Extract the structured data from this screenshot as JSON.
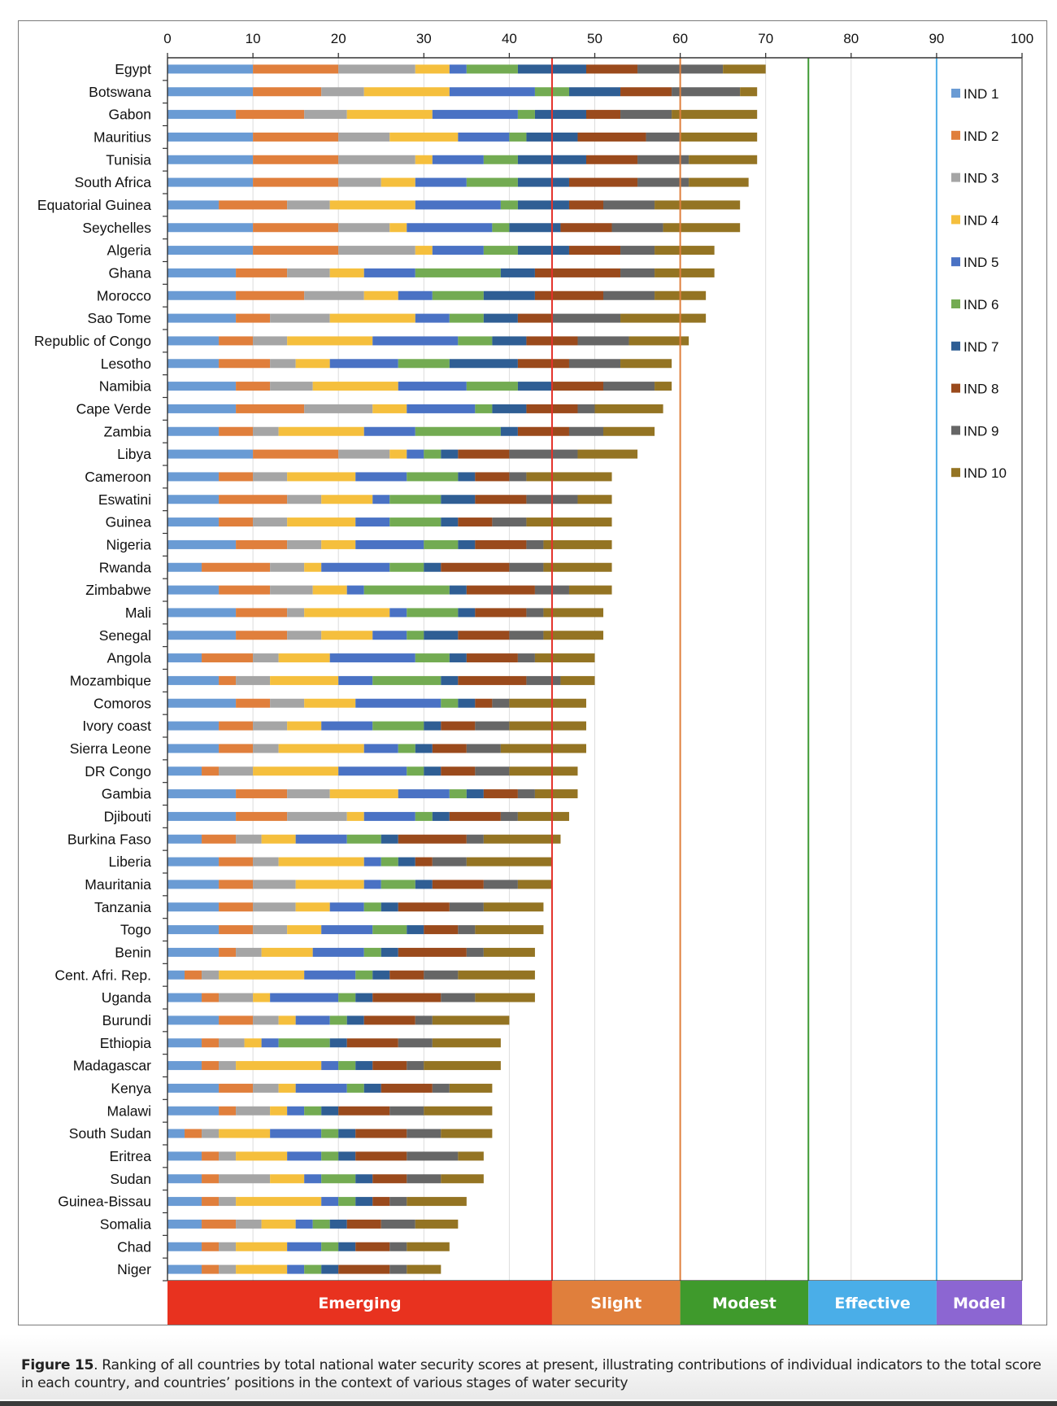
{
  "chart_data": {
    "type": "bar",
    "orientation": "horizontal",
    "stacked": true,
    "title": "",
    "xlabel": "",
    "ylabel": "",
    "xlim": [
      0,
      100
    ],
    "x_ticks": [
      0,
      10,
      20,
      30,
      40,
      50,
      60,
      70,
      80,
      90,
      100
    ],
    "x_axis_position": "top",
    "grid": "vertical",
    "legend_position": "right",
    "series_names": [
      "IND 1",
      "IND 2",
      "IND 3",
      "IND 4",
      "IND 5",
      "IND 6",
      "IND 7",
      "IND 8",
      "IND 9",
      "IND 10"
    ],
    "series_colors": [
      "#6a9bd4",
      "#e07f3c",
      "#a5a5a5",
      "#f5bf3d",
      "#4a72c4",
      "#73ab52",
      "#2f5e94",
      "#9a4a1c",
      "#666666",
      "#947423"
    ],
    "categories": [
      "Egypt",
      "Botswana",
      "Gabon",
      "Mauritius",
      "Tunisia",
      "South Africa",
      "Equatorial Guinea",
      "Seychelles",
      "Algeria",
      "Ghana",
      "Morocco",
      "Sao Tome",
      "Republic of Congo",
      "Lesotho",
      "Namibia",
      "Cape Verde",
      "Zambia",
      "Libya",
      "Cameroon",
      "Eswatini",
      "Guinea",
      "Nigeria",
      "Rwanda",
      "Zimbabwe",
      "Mali",
      "Senegal",
      "Angola",
      "Mozambique",
      "Comoros",
      "Ivory coast",
      "Sierra Leone",
      "DR Congo",
      "Gambia",
      "Djibouti",
      "Burkina Faso",
      "Liberia",
      "Mauritania",
      "Tanzania",
      "Togo",
      "Benin",
      "Cent. Afri. Rep.",
      "Uganda",
      "Burundi",
      "Ethiopia",
      "Madagascar",
      "Kenya",
      "Malawi",
      "South Sudan",
      "Eritrea",
      "Sudan",
      "Guinea-Bissau",
      "Somalia",
      "Chad",
      "Niger"
    ],
    "values": [
      [
        10,
        10,
        9,
        4,
        2,
        6,
        8,
        6,
        10,
        5
      ],
      [
        10,
        8,
        5,
        10,
        10,
        4,
        6,
        6,
        8,
        2
      ],
      [
        8,
        8,
        5,
        10,
        10,
        2,
        6,
        4,
        6,
        10
      ],
      [
        10,
        10,
        6,
        8,
        6,
        2,
        6,
        8,
        4,
        9
      ],
      [
        10,
        10,
        9,
        2,
        6,
        4,
        8,
        6,
        6,
        8
      ],
      [
        10,
        10,
        5,
        4,
        6,
        6,
        6,
        8,
        6,
        7
      ],
      [
        6,
        8,
        5,
        10,
        10,
        2,
        6,
        4,
        6,
        10
      ],
      [
        10,
        10,
        6,
        2,
        10,
        2,
        6,
        6,
        6,
        9
      ],
      [
        10,
        10,
        9,
        2,
        6,
        4,
        6,
        6,
        4,
        7
      ],
      [
        8,
        6,
        5,
        4,
        6,
        10,
        4,
        10,
        4,
        7
      ],
      [
        8,
        8,
        7,
        4,
        4,
        6,
        6,
        8,
        6,
        6
      ],
      [
        8,
        4,
        7,
        10,
        4,
        4,
        4,
        4,
        8,
        10
      ],
      [
        6,
        4,
        4,
        10,
        10,
        4,
        4,
        6,
        6,
        7
      ],
      [
        6,
        6,
        3,
        4,
        8,
        6,
        8,
        6,
        6,
        6
      ],
      [
        8,
        4,
        5,
        10,
        8,
        6,
        4,
        6,
        6,
        2
      ],
      [
        8,
        8,
        8,
        4,
        8,
        2,
        4,
        6,
        2,
        8
      ],
      [
        6,
        4,
        3,
        10,
        6,
        10,
        2,
        6,
        4,
        6
      ],
      [
        10,
        10,
        6,
        2,
        2,
        2,
        2,
        6,
        8,
        7
      ],
      [
        6,
        4,
        4,
        8,
        6,
        6,
        2,
        4,
        2,
        10
      ],
      [
        6,
        8,
        4,
        6,
        2,
        6,
        4,
        6,
        6,
        4
      ],
      [
        6,
        4,
        4,
        8,
        4,
        6,
        2,
        4,
        4,
        10
      ],
      [
        8,
        6,
        4,
        4,
        8,
        4,
        2,
        6,
        2,
        8
      ],
      [
        4,
        8,
        4,
        2,
        8,
        4,
        2,
        8,
        4,
        8
      ],
      [
        6,
        6,
        5,
        4,
        2,
        10,
        2,
        8,
        4,
        5
      ],
      [
        8,
        6,
        2,
        10,
        2,
        6,
        2,
        6,
        2,
        7
      ],
      [
        8,
        6,
        4,
        6,
        4,
        2,
        4,
        6,
        4,
        7
      ],
      [
        4,
        6,
        3,
        6,
        10,
        4,
        2,
        6,
        2,
        7
      ],
      [
        6,
        2,
        4,
        8,
        4,
        8,
        2,
        8,
        4,
        4
      ],
      [
        8,
        4,
        4,
        6,
        10,
        2,
        2,
        2,
        2,
        9
      ],
      [
        6,
        4,
        4,
        4,
        6,
        6,
        2,
        4,
        4,
        9
      ],
      [
        6,
        4,
        3,
        10,
        4,
        2,
        2,
        4,
        4,
        10
      ],
      [
        4,
        2,
        4,
        10,
        8,
        2,
        2,
        4,
        4,
        8
      ],
      [
        8,
        6,
        5,
        8,
        6,
        2,
        2,
        4,
        2,
        5
      ],
      [
        8,
        6,
        7,
        2,
        6,
        2,
        2,
        6,
        2,
        6
      ],
      [
        4,
        4,
        3,
        4,
        6,
        4,
        2,
        8,
        2,
        9
      ],
      [
        6,
        4,
        3,
        10,
        2,
        2,
        2,
        2,
        4,
        10
      ],
      [
        6,
        4,
        5,
        8,
        2,
        4,
        2,
        6,
        4,
        4
      ],
      [
        6,
        4,
        5,
        4,
        4,
        2,
        2,
        6,
        4,
        7
      ],
      [
        6,
        4,
        4,
        4,
        6,
        4,
        2,
        4,
        2,
        8
      ],
      [
        6,
        2,
        3,
        6,
        6,
        2,
        2,
        8,
        2,
        6
      ],
      [
        2,
        2,
        2,
        10,
        6,
        2,
        2,
        4,
        4,
        9
      ],
      [
        4,
        2,
        4,
        2,
        8,
        2,
        2,
        8,
        4,
        7
      ],
      [
        6,
        4,
        3,
        2,
        4,
        2,
        2,
        6,
        2,
        9
      ],
      [
        4,
        2,
        3,
        2,
        2,
        6,
        2,
        6,
        4,
        8
      ],
      [
        4,
        2,
        2,
        10,
        2,
        2,
        2,
        4,
        2,
        9
      ],
      [
        6,
        4,
        3,
        2,
        6,
        2,
        2,
        6,
        2,
        5
      ],
      [
        6,
        2,
        4,
        2,
        2,
        2,
        2,
        6,
        4,
        8
      ],
      [
        2,
        2,
        2,
        6,
        6,
        2,
        2,
        6,
        4,
        6
      ],
      [
        4,
        2,
        2,
        6,
        4,
        2,
        2,
        6,
        6,
        3
      ],
      [
        4,
        2,
        6,
        4,
        2,
        4,
        2,
        4,
        4,
        5
      ],
      [
        4,
        2,
        2,
        10,
        2,
        2,
        2,
        2,
        2,
        7
      ],
      [
        4,
        4,
        3,
        4,
        2,
        2,
        2,
        4,
        4,
        5
      ],
      [
        4,
        2,
        2,
        6,
        4,
        2,
        2,
        4,
        2,
        5
      ],
      [
        4,
        2,
        2,
        6,
        2,
        2,
        2,
        6,
        2,
        4
      ]
    ],
    "thresholds": [
      {
        "value": 45,
        "color": "#e4322a"
      },
      {
        "value": 60,
        "color": "#e07f3c"
      },
      {
        "value": 75,
        "color": "#3f9a34"
      },
      {
        "value": 90,
        "color": "#4faee8"
      }
    ],
    "stages": [
      {
        "label": "Emerging",
        "from": 0,
        "to": 45,
        "color": "#e8321f"
      },
      {
        "label": "Slight",
        "from": 45,
        "to": 60,
        "color": "#e07f3c"
      },
      {
        "label": "Modest",
        "from": 60,
        "to": 75,
        "color": "#3f9a2c"
      },
      {
        "label": "Effective",
        "from": 75,
        "to": 90,
        "color": "#4aaee8"
      },
      {
        "label": "Model",
        "from": 90,
        "to": 100,
        "color": "#8c66d2"
      }
    ]
  },
  "caption": {
    "figure_label": "Figure 15",
    "text": ". Ranking of all countries by total national water security scores at present, illustrating contributions of individual indicators to the total score in each country, and countries’ positions in the context of various stages of water security"
  }
}
